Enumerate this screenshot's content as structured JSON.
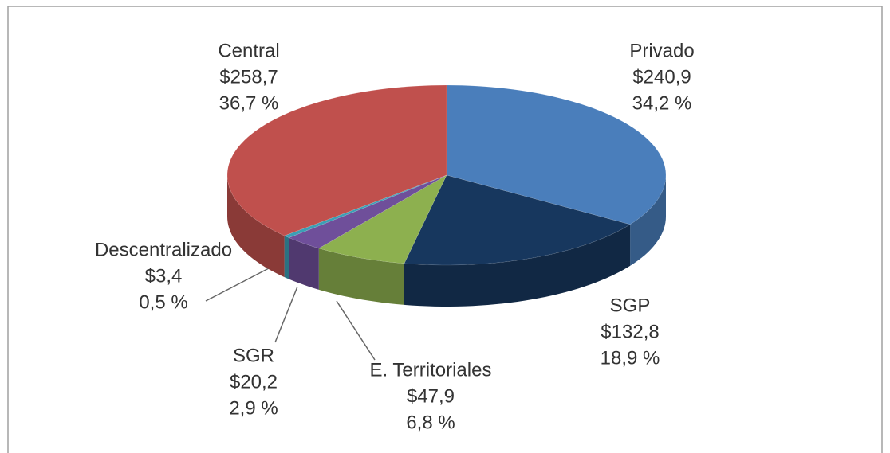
{
  "chart_data": {
    "type": "pie3d",
    "categories": [
      "Privado",
      "SGP",
      "E. Territoriales",
      "SGR",
      "Descentralizado",
      "Central"
    ],
    "values": [
      240.9,
      132.8,
      47.9,
      20.2,
      3.4,
      258.7
    ],
    "value_labels": [
      "$240,9",
      "$132,8",
      "$47,9",
      "$20,2",
      "$3,4",
      "$258,7"
    ],
    "percentages": [
      34.2,
      18.9,
      6.8,
      2.9,
      0.5,
      36.7
    ],
    "percentage_labels": [
      "34,2 %",
      "18,9 %",
      "6,8 %",
      "2,9 %",
      "0,5 %",
      "36,7 %"
    ],
    "colors": [
      "#4a7ebb",
      "#17375e",
      "#8db04f",
      "#6f4f9a",
      "#3c9fb5",
      "#c0504d"
    ]
  }
}
